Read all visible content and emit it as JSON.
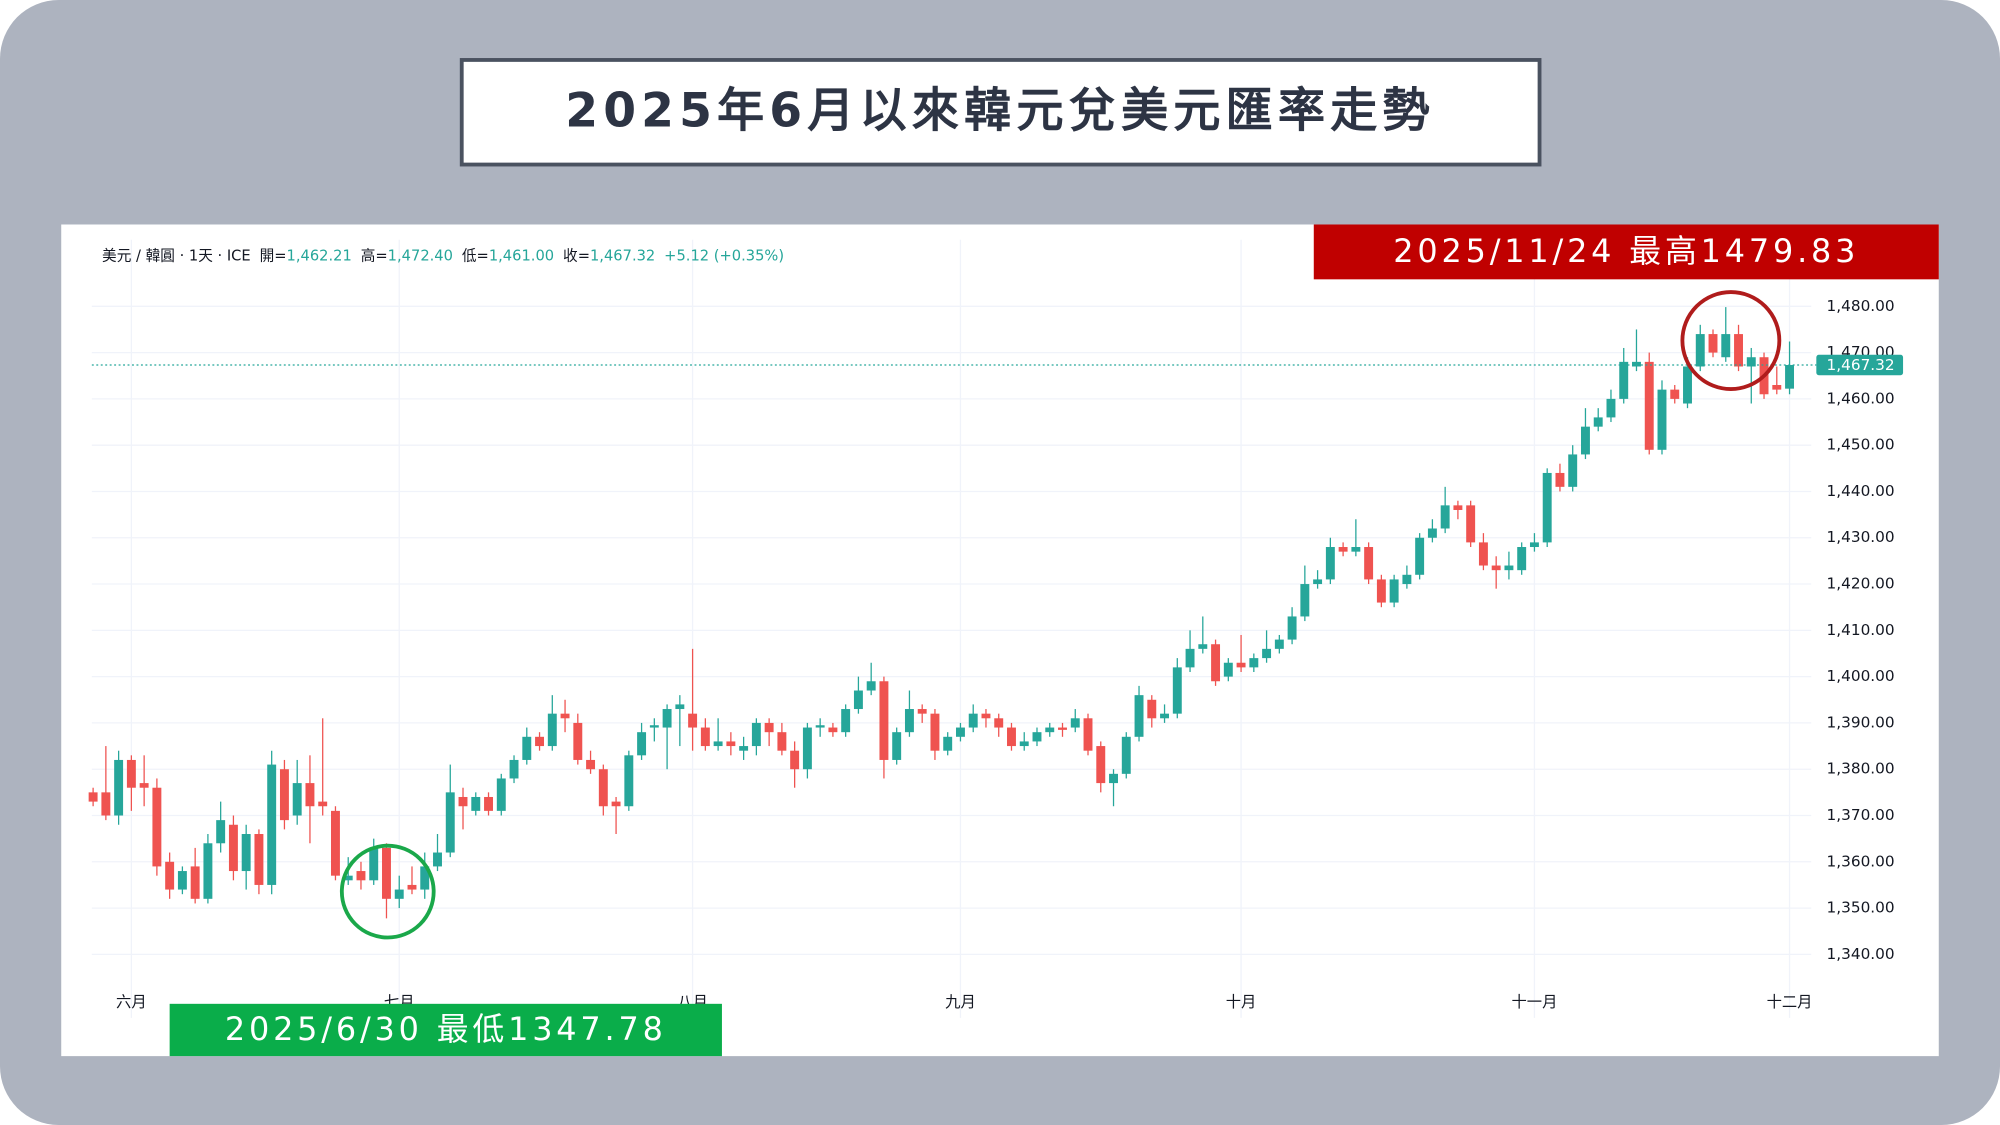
{
  "chart_data": {
    "type": "candlestick",
    "title": "2025年6月以來韓元兌美元匯率走勢",
    "header": {
      "symbol": "美元 / 韓圓 · 1天 · ICE",
      "fields": [
        {
          "name": "開=",
          "value": "1,462.21"
        },
        {
          "name": "高=",
          "value": "1,472.40"
        },
        {
          "name": "低=",
          "value": "1,461.00"
        },
        {
          "name": "收=",
          "value": "1,467.32"
        }
      ],
      "change": "+5.12 (+0.35%)"
    },
    "annotations": [
      {
        "text": "2025/11/24 最高1479.83",
        "color": "#c00000"
      },
      {
        "text": "2025/6/30 最低1347.78",
        "color": "#0aad4a"
      }
    ],
    "up_color": "#26a69a",
    "down_color": "#ef5350",
    "grid": true,
    "categories": [
      null,
      null,
      null,
      "六月",
      null,
      null,
      null,
      null,
      null,
      null,
      null,
      null,
      null,
      null,
      null,
      null,
      null,
      null,
      null,
      null,
      null,
      null,
      null,
      null,
      "七月",
      null,
      null,
      null,
      null,
      null,
      null,
      null,
      null,
      null,
      null,
      null,
      null,
      null,
      null,
      null,
      null,
      null,
      null,
      null,
      null,
      null,
      null,
      "八月",
      null,
      null,
      null,
      null,
      null,
      null,
      null,
      null,
      null,
      null,
      null,
      null,
      null,
      null,
      null,
      null,
      null,
      null,
      null,
      null,
      "九月",
      null,
      null,
      null,
      null,
      null,
      null,
      null,
      null,
      null,
      null,
      null,
      null,
      null,
      null,
      null,
      null,
      null,
      null,
      null,
      null,
      null,
      "十月",
      null,
      null,
      null,
      null,
      null,
      null,
      null,
      null,
      null,
      null,
      null,
      null,
      null,
      null,
      null,
      null,
      null,
      null,
      null,
      null,
      null,
      null,
      "十一月",
      null,
      null,
      null,
      null,
      null,
      null,
      null,
      null,
      null,
      null,
      null,
      null,
      null,
      null,
      null,
      null,
      null,
      null,
      null,
      "十二月"
    ],
    "open": [
      1375,
      1375,
      1370,
      1382,
      1377,
      1376,
      1360,
      1354,
      1359,
      1352,
      1364,
      1368,
      1358,
      1366,
      1355,
      1380,
      1370,
      1377,
      1373,
      1371,
      1356,
      1358,
      1356,
      1363,
      1352,
      1355,
      1354,
      1359,
      1362,
      1374,
      1371,
      1374,
      1371,
      1378,
      1382,
      1387,
      1385,
      1392,
      1390,
      1382,
      1380,
      1373,
      1372,
      1383,
      1389,
      1389,
      1393,
      1392,
      1389,
      1385,
      1386,
      1384,
      1385,
      1390,
      1388,
      1384,
      1380,
      1389,
      1389,
      1388,
      1393,
      1397,
      1399,
      1382,
      1388,
      1393,
      1392,
      1384,
      1387,
      1389,
      1392,
      1391,
      1389,
      1385,
      1386,
      1388,
      1389,
      1389,
      1391,
      1385,
      1377,
      1379,
      1387,
      1395,
      1391,
      1392,
      1402,
      1406,
      1407,
      1400,
      1403,
      1402,
      1404,
      1406,
      1408,
      1413,
      1420,
      1421,
      1428,
      1427,
      1428,
      1421,
      1416,
      1420,
      1422,
      1430,
      1432,
      1437,
      1437,
      1429,
      1424,
      1423,
      1423,
      1428,
      1429,
      1444,
      1441,
      1448,
      1454,
      1456,
      1460,
      1467,
      1468,
      1449,
      1462,
      1459,
      1467,
      1474,
      1469,
      1474,
      1467,
      1469,
      1463,
      1462.21
    ],
    "high": [
      1376,
      1385,
      1384,
      1383,
      1383,
      1378,
      1362,
      1359,
      1363,
      1366,
      1373,
      1370,
      1368,
      1367,
      1384,
      1382,
      1382,
      1383,
      1391,
      1372,
      1361,
      1360,
      1365,
      1364,
      1357,
      1359,
      1362,
      1366,
      1381,
      1376,
      1375,
      1375,
      1379,
      1383,
      1389,
      1388,
      1396,
      1395,
      1392,
      1384,
      1381,
      1374,
      1384,
      1390,
      1391,
      1394,
      1396,
      1406,
      1391,
      1391,
      1388,
      1387,
      1391,
      1391,
      1390,
      1386,
      1390,
      1391,
      1390,
      1394,
      1400,
      1403,
      1400,
      1389,
      1397,
      1394,
      1393,
      1388,
      1390,
      1394,
      1393,
      1392,
      1390,
      1388,
      1389,
      1390,
      1390,
      1393,
      1392,
      1386,
      1380,
      1388,
      1398,
      1396,
      1394,
      1404,
      1410,
      1413,
      1408,
      1404,
      1409,
      1405,
      1410,
      1409,
      1415,
      1424,
      1423,
      1430,
      1429,
      1434,
      1429,
      1422,
      1422,
      1424,
      1431,
      1434,
      1441,
      1438,
      1438,
      1431,
      1426,
      1427,
      1429,
      1431,
      1445,
      1446,
      1450,
      1458,
      1458,
      1462,
      1471,
      1475,
      1470,
      1464,
      1463,
      1469,
      1476,
      1475,
      1479.83,
      1476,
      1471,
      1470,
      1467,
      1472.4
    ],
    "low": [
      1372,
      1369,
      1368,
      1371,
      1372,
      1357,
      1352,
      1353,
      1351,
      1351,
      1362,
      1356,
      1354,
      1353,
      1353,
      1367,
      1368,
      1364,
      1370,
      1356,
      1355,
      1354,
      1355,
      1347.78,
      1350,
      1353,
      1352,
      1358,
      1361,
      1367,
      1370,
      1370,
      1370,
      1377,
      1381,
      1384,
      1384,
      1388,
      1381,
      1379,
      1370,
      1366,
      1371,
      1382,
      1386,
      1380,
      1385,
      1384,
      1384,
      1384,
      1383,
      1382,
      1383,
      1385,
      1383,
      1376,
      1378,
      1387,
      1387,
      1387,
      1392,
      1396,
      1378,
      1381,
      1387,
      1390,
      1382,
      1383,
      1386,
      1388,
      1389,
      1387,
      1384,
      1384,
      1385,
      1387,
      1387,
      1388,
      1383,
      1375,
      1372,
      1378,
      1386,
      1389,
      1390,
      1391,
      1401,
      1405,
      1398,
      1399,
      1401,
      1401,
      1403,
      1405,
      1407,
      1412,
      1419,
      1420,
      1426,
      1426,
      1420,
      1415,
      1415,
      1419,
      1421,
      1429,
      1431,
      1434,
      1428,
      1423,
      1419,
      1421,
      1422,
      1427,
      1428,
      1440,
      1440,
      1447,
      1453,
      1455,
      1459,
      1466,
      1448,
      1448,
      1459,
      1458,
      1466,
      1469,
      1468,
      1466,
      1459,
      1460,
      1461,
      1461
    ],
    "close": [
      1373,
      1370,
      1382,
      1376,
      1376,
      1359,
      1354,
      1358,
      1352,
      1364,
      1369,
      1358,
      1366,
      1355,
      1381,
      1369,
      1377,
      1372,
      1372,
      1357,
      1357,
      1356,
      1363,
      1352,
      1354,
      1354,
      1359,
      1362,
      1375,
      1372,
      1374,
      1371,
      1378,
      1382,
      1387,
      1385,
      1392,
      1391,
      1382,
      1380,
      1372,
      1372,
      1383,
      1388,
      1389.5,
      1393,
      1394,
      1389,
      1385,
      1386,
      1385,
      1385,
      1390,
      1388,
      1384,
      1380,
      1389,
      1389.5,
      1388,
      1393,
      1397,
      1399,
      1382,
      1388,
      1393,
      1392,
      1384,
      1387,
      1389,
      1392,
      1391,
      1389,
      1385,
      1386,
      1388,
      1389,
      1388.5,
      1391,
      1384,
      1377,
      1379,
      1387,
      1396,
      1391,
      1392,
      1402,
      1406,
      1407,
      1399,
      1403,
      1402,
      1404,
      1406,
      1408,
      1413,
      1420,
      1421,
      1428,
      1427,
      1428,
      1421,
      1416,
      1421,
      1422,
      1430,
      1432,
      1437,
      1436,
      1429,
      1424,
      1423,
      1424,
      1428,
      1429,
      1444,
      1441,
      1448,
      1454,
      1456,
      1460,
      1468,
      1468,
      1449,
      1462,
      1460,
      1467,
      1474,
      1470,
      1474,
      1467,
      1469,
      1461,
      1462,
      1467.32
    ],
    "ylim": [
      1334,
      1485
    ],
    "yticks": [
      {
        "value": 1340,
        "label": "1,340.00"
      },
      {
        "value": 1350,
        "label": "1,350.00"
      },
      {
        "value": 1360,
        "label": "1,360.00"
      },
      {
        "value": 1370,
        "label": "1,370.00"
      },
      {
        "value": 1380,
        "label": "1,380.00"
      },
      {
        "value": 1390,
        "label": "1,390.00"
      },
      {
        "value": 1400,
        "label": "1,400.00"
      },
      {
        "value": 1410,
        "label": "1,410.00"
      },
      {
        "value": 1420,
        "label": "1,420.00"
      },
      {
        "value": 1430,
        "label": "1,430.00"
      },
      {
        "value": 1440,
        "label": "1,440.00"
      },
      {
        "value": 1450,
        "label": "1,450.00"
      },
      {
        "value": 1460,
        "label": "1,460.00"
      },
      {
        "value": 1470,
        "label": "1,470.00"
      },
      {
        "value": 1480,
        "label": "1,480.00"
      }
    ],
    "last_price": {
      "value": 1467.32,
      "label": "1,467.32"
    }
  }
}
